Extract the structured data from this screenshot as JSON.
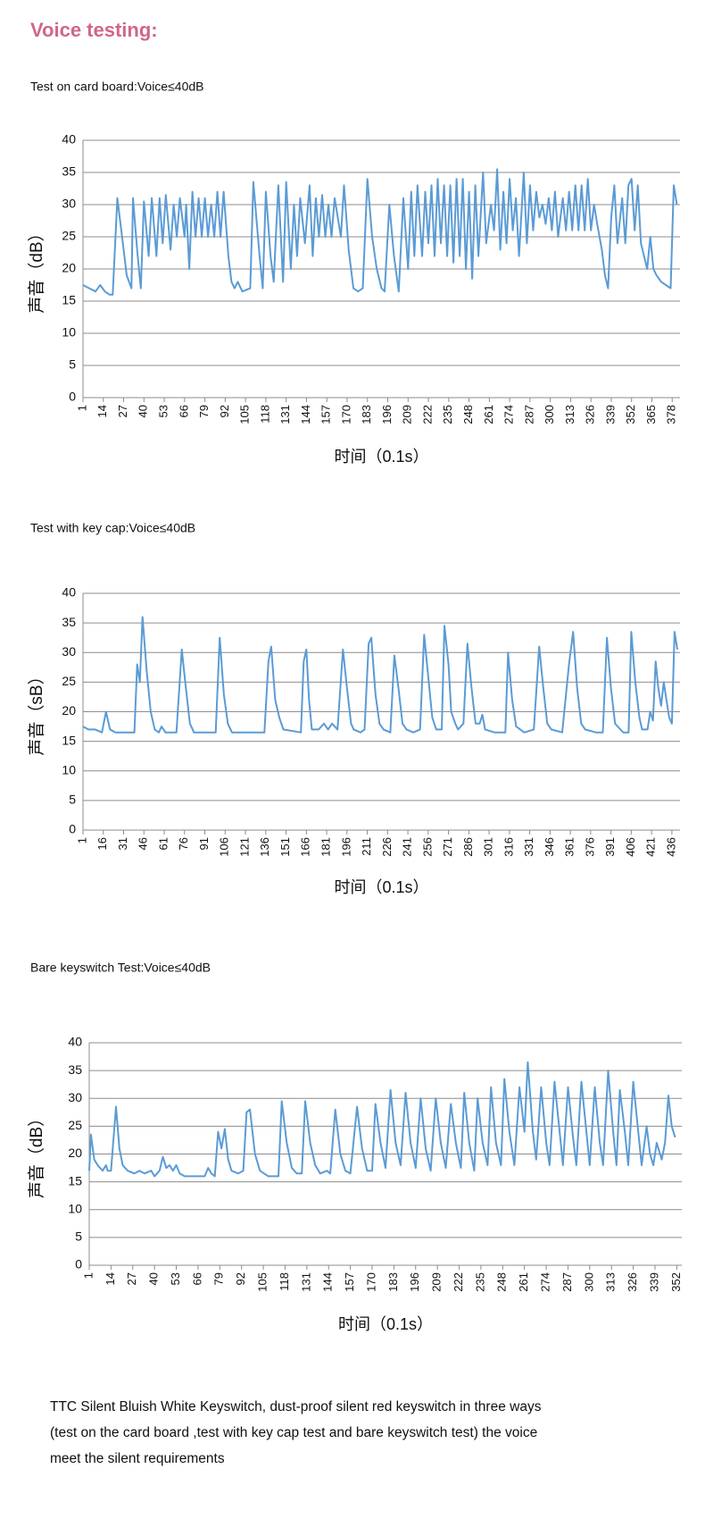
{
  "title": "Voice testing:",
  "chart_data": [
    {
      "type": "line",
      "title": "Test on card board:Voice≤40dB",
      "y_label": "声音（dB）",
      "x_label": "时间（0.1s）",
      "color": "#5b9bd5",
      "grid": true,
      "xlim": [
        1,
        383
      ],
      "xticks": [
        1,
        14,
        27,
        40,
        53,
        66,
        79,
        92,
        105,
        118,
        131,
        144,
        157,
        170,
        183,
        196,
        209,
        222,
        235,
        248,
        261,
        274,
        287,
        300,
        313,
        326,
        339,
        352,
        365,
        378
      ],
      "ylim": [
        0,
        40
      ],
      "yticks": [
        0,
        5,
        10,
        15,
        20,
        25,
        30,
        35,
        40
      ],
      "x": [
        1,
        5,
        9,
        12,
        15,
        18,
        20,
        23,
        26,
        29,
        32,
        33,
        36,
        38,
        40,
        43,
        45,
        48,
        50,
        52,
        54,
        57,
        59,
        61,
        63,
        66,
        67,
        69,
        71,
        73,
        75,
        77,
        79,
        81,
        83,
        85,
        87,
        89,
        91,
        94,
        96,
        98,
        100,
        103,
        108,
        110,
        114,
        116,
        118,
        121,
        123,
        126,
        129,
        131,
        134,
        136,
        138,
        140,
        143,
        146,
        148,
        150,
        152,
        154,
        156,
        158,
        160,
        162,
        164,
        166,
        168,
        171,
        174,
        177,
        180,
        183,
        186,
        189,
        192,
        194,
        197,
        200,
        203,
        206,
        209,
        211,
        213,
        215,
        218,
        220,
        222,
        224,
        226,
        228,
        230,
        232,
        234,
        236,
        238,
        240,
        242,
        244,
        246,
        248,
        250,
        252,
        254,
        257,
        259,
        262,
        264,
        266,
        268,
        270,
        272,
        274,
        276,
        278,
        280,
        283,
        285,
        287,
        289,
        291,
        293,
        295,
        297,
        299,
        301,
        303,
        305,
        308,
        310,
        312,
        314,
        316,
        318,
        320,
        322,
        324,
        326,
        328,
        330,
        333,
        335,
        337,
        339,
        341,
        343,
        346,
        348,
        350,
        352,
        354,
        356,
        358,
        360,
        362,
        364,
        366,
        368,
        371,
        374,
        377,
        379,
        381
      ],
      "values": [
        17.5,
        17,
        16.5,
        17.5,
        16.5,
        16,
        16,
        31,
        25,
        19,
        17,
        31,
        22,
        17,
        30.5,
        22,
        31,
        22,
        31,
        24,
        31.5,
        23,
        30,
        25,
        31,
        25,
        30,
        20,
        32,
        25,
        31,
        25,
        31,
        25,
        30,
        25,
        32,
        25,
        32,
        22,
        18,
        17,
        18,
        16.5,
        17,
        33.5,
        22,
        17,
        32,
        22,
        18,
        33,
        18,
        33.5,
        20,
        30,
        22,
        31,
        24,
        33,
        22,
        31,
        25,
        31.5,
        25,
        30,
        25,
        31,
        28,
        25,
        33,
        23,
        17,
        16.5,
        17,
        34,
        25,
        20,
        17,
        16.5,
        30,
        22,
        16.5,
        31,
        20,
        32,
        22,
        33,
        22,
        32,
        24,
        33,
        22,
        34,
        24,
        33,
        22,
        33,
        21,
        34,
        22,
        34,
        20,
        32,
        18.5,
        33,
        22,
        35,
        24,
        30,
        26,
        35.5,
        23,
        32,
        24,
        34,
        26,
        31,
        22,
        35,
        24,
        33,
        26,
        32,
        28,
        30,
        27,
        31,
        26,
        32,
        25,
        31,
        26,
        32,
        26,
        33,
        26,
        33,
        26,
        34,
        26,
        30,
        27,
        23,
        19,
        17,
        28,
        33,
        24,
        31,
        24,
        33,
        34,
        26,
        33,
        24,
        22,
        20,
        25,
        20,
        19,
        18,
        17.5,
        17,
        33,
        30
      ]
    },
    {
      "type": "line",
      "title": "Test with key cap:Voice≤40dB",
      "y_label": "声音（sB）",
      "x_label": "时间（0.1s）",
      "color": "#5b9bd5",
      "grid": true,
      "xlim": [
        1,
        442
      ],
      "xticks": [
        1,
        16,
        31,
        46,
        61,
        76,
        91,
        106,
        121,
        136,
        151,
        166,
        181,
        196,
        211,
        226,
        241,
        256,
        271,
        286,
        301,
        316,
        331,
        346,
        361,
        376,
        391,
        406,
        421,
        436
      ],
      "ylim": [
        0,
        40
      ],
      "yticks": [
        0,
        5,
        10,
        15,
        20,
        25,
        30,
        35,
        40
      ],
      "x": [
        1,
        5,
        10,
        15,
        18,
        21,
        25,
        35,
        39,
        41,
        43,
        45,
        48,
        51,
        54,
        57,
        59,
        62,
        70,
        74,
        77,
        80,
        83,
        92,
        99,
        102,
        105,
        108,
        111,
        125,
        135,
        138,
        140,
        143,
        146,
        149,
        162,
        164,
        166,
        168,
        170,
        175,
        179,
        182,
        185,
        189,
        193,
        196,
        199,
        201,
        206,
        209,
        212,
        214,
        217,
        220,
        223,
        228,
        231,
        234,
        237,
        240,
        245,
        250,
        253,
        256,
        259,
        262,
        266,
        268,
        271,
        273,
        276,
        278,
        282,
        285,
        288,
        291,
        294,
        296,
        298,
        305,
        313,
        315,
        318,
        321,
        327,
        334,
        338,
        341,
        344,
        347,
        355,
        360,
        363,
        366,
        369,
        372,
        380,
        385,
        388,
        391,
        394,
        398,
        400,
        404,
        406,
        409,
        412,
        414,
        418,
        420,
        422,
        424,
        426,
        428,
        430,
        432,
        434,
        436,
        438,
        440
      ],
      "values": [
        17.5,
        17,
        17,
        16.5,
        20,
        17,
        16.5,
        16.5,
        16.5,
        28,
        25,
        36,
        27,
        20,
        17,
        16.5,
        17.5,
        16.5,
        16.5,
        30.5,
        24,
        18,
        16.5,
        16.5,
        16.5,
        32.5,
        23,
        18,
        16.5,
        16.5,
        16.5,
        28.5,
        31,
        22,
        19,
        17,
        16.5,
        28.5,
        30.5,
        22,
        17,
        17,
        18,
        17,
        18,
        17,
        30.5,
        24,
        18,
        17,
        16.5,
        17,
        31.5,
        32.5,
        23,
        18,
        17,
        16.5,
        29.5,
        24,
        18,
        17,
        16.5,
        17,
        33,
        26,
        19,
        17,
        17,
        34.5,
        28,
        20,
        18,
        17,
        18,
        31.5,
        24,
        18,
        18,
        19.5,
        17,
        16.5,
        16.5,
        30,
        22,
        17.5,
        16.5,
        17,
        31,
        24,
        18,
        17,
        16.5,
        28,
        33.5,
        24,
        18,
        17,
        16.5,
        16.5,
        32.5,
        24,
        18,
        17,
        16.5,
        16.5,
        33.5,
        25,
        19,
        17,
        17,
        20,
        18.5,
        28.5,
        24,
        21,
        25,
        22,
        19,
        18,
        33.5,
        30.5
      ]
    },
    {
      "type": "line",
      "title": "Bare keyswitch Test:Voice≤40dB",
      "y_label": "声音（dB）",
      "x_label": "时间（0.1s）",
      "color": "#5b9bd5",
      "grid": true,
      "xlim": [
        1,
        355
      ],
      "xticks": [
        1,
        14,
        27,
        40,
        53,
        66,
        79,
        92,
        105,
        118,
        131,
        144,
        157,
        170,
        183,
        196,
        209,
        222,
        235,
        248,
        261,
        274,
        287,
        300,
        313,
        326,
        339,
        352
      ],
      "ylim": [
        0,
        40
      ],
      "yticks": [
        0,
        5,
        10,
        15,
        20,
        25,
        30,
        35,
        40
      ],
      "x": [
        1,
        2,
        4,
        6,
        9,
        11,
        12,
        14,
        17,
        19,
        21,
        24,
        28,
        31,
        34,
        38,
        40,
        43,
        45,
        47,
        49,
        51,
        53,
        55,
        58,
        65,
        70,
        72,
        74,
        76,
        78,
        80,
        82,
        84,
        86,
        90,
        93,
        95,
        97,
        100,
        103,
        108,
        114,
        116,
        119,
        122,
        125,
        128,
        130,
        133,
        136,
        139,
        143,
        145,
        148,
        151,
        154,
        157,
        161,
        164,
        167,
        170,
        172,
        175,
        178,
        181,
        184,
        187,
        190,
        193,
        196,
        199,
        202,
        205,
        208,
        211,
        214,
        217,
        220,
        223,
        225,
        228,
        231,
        233,
        236,
        239,
        241,
        244,
        247,
        249,
        252,
        255,
        258,
        261,
        263,
        266,
        268,
        271,
        274,
        276,
        279,
        282,
        284,
        287,
        290,
        292,
        295,
        298,
        300,
        303,
        306,
        308,
        311,
        314,
        316,
        318,
        321,
        323,
        326,
        329,
        331,
        334,
        336,
        338,
        340,
        343,
        345,
        347,
        349,
        351
      ],
      "values": [
        17,
        23.5,
        19,
        18,
        17,
        18,
        17,
        17,
        28.5,
        21,
        18,
        17,
        16.5,
        17,
        16.5,
        17,
        16,
        17,
        19.5,
        17.5,
        18,
        17,
        18,
        16.5,
        16,
        16,
        16,
        17.5,
        16.5,
        16,
        24,
        21,
        24.5,
        19,
        17,
        16.5,
        17,
        27.5,
        28,
        20,
        17,
        16,
        16,
        29.5,
        22,
        17.5,
        16.5,
        16.5,
        29.5,
        22,
        18,
        16.5,
        17,
        16.5,
        28,
        20,
        17,
        16.5,
        28.5,
        21,
        17,
        17,
        29,
        22,
        17.5,
        31.5,
        22,
        18,
        31,
        22,
        17.5,
        30,
        21,
        17,
        30,
        22,
        17.5,
        29,
        22,
        17.5,
        31,
        22,
        17,
        30,
        22,
        18,
        32,
        22,
        18,
        33.5,
        24,
        18,
        32,
        24,
        36.5,
        24,
        19,
        32,
        22,
        18,
        33,
        24,
        18,
        32,
        23,
        18,
        33,
        24,
        18,
        32,
        22,
        18,
        35,
        24,
        18,
        31.5,
        24,
        18,
        33,
        24,
        18,
        25,
        20,
        18,
        22,
        19,
        22,
        30.5,
        25,
        23
      ]
    }
  ],
  "description": [
    "TTC Silent Bluish White Keyswitch, dust-proof silent red keyswitch in three ways",
    " (test on the card board ,test with key cap test and bare keyswitch test) the voice",
    "meet the silent requirements"
  ]
}
